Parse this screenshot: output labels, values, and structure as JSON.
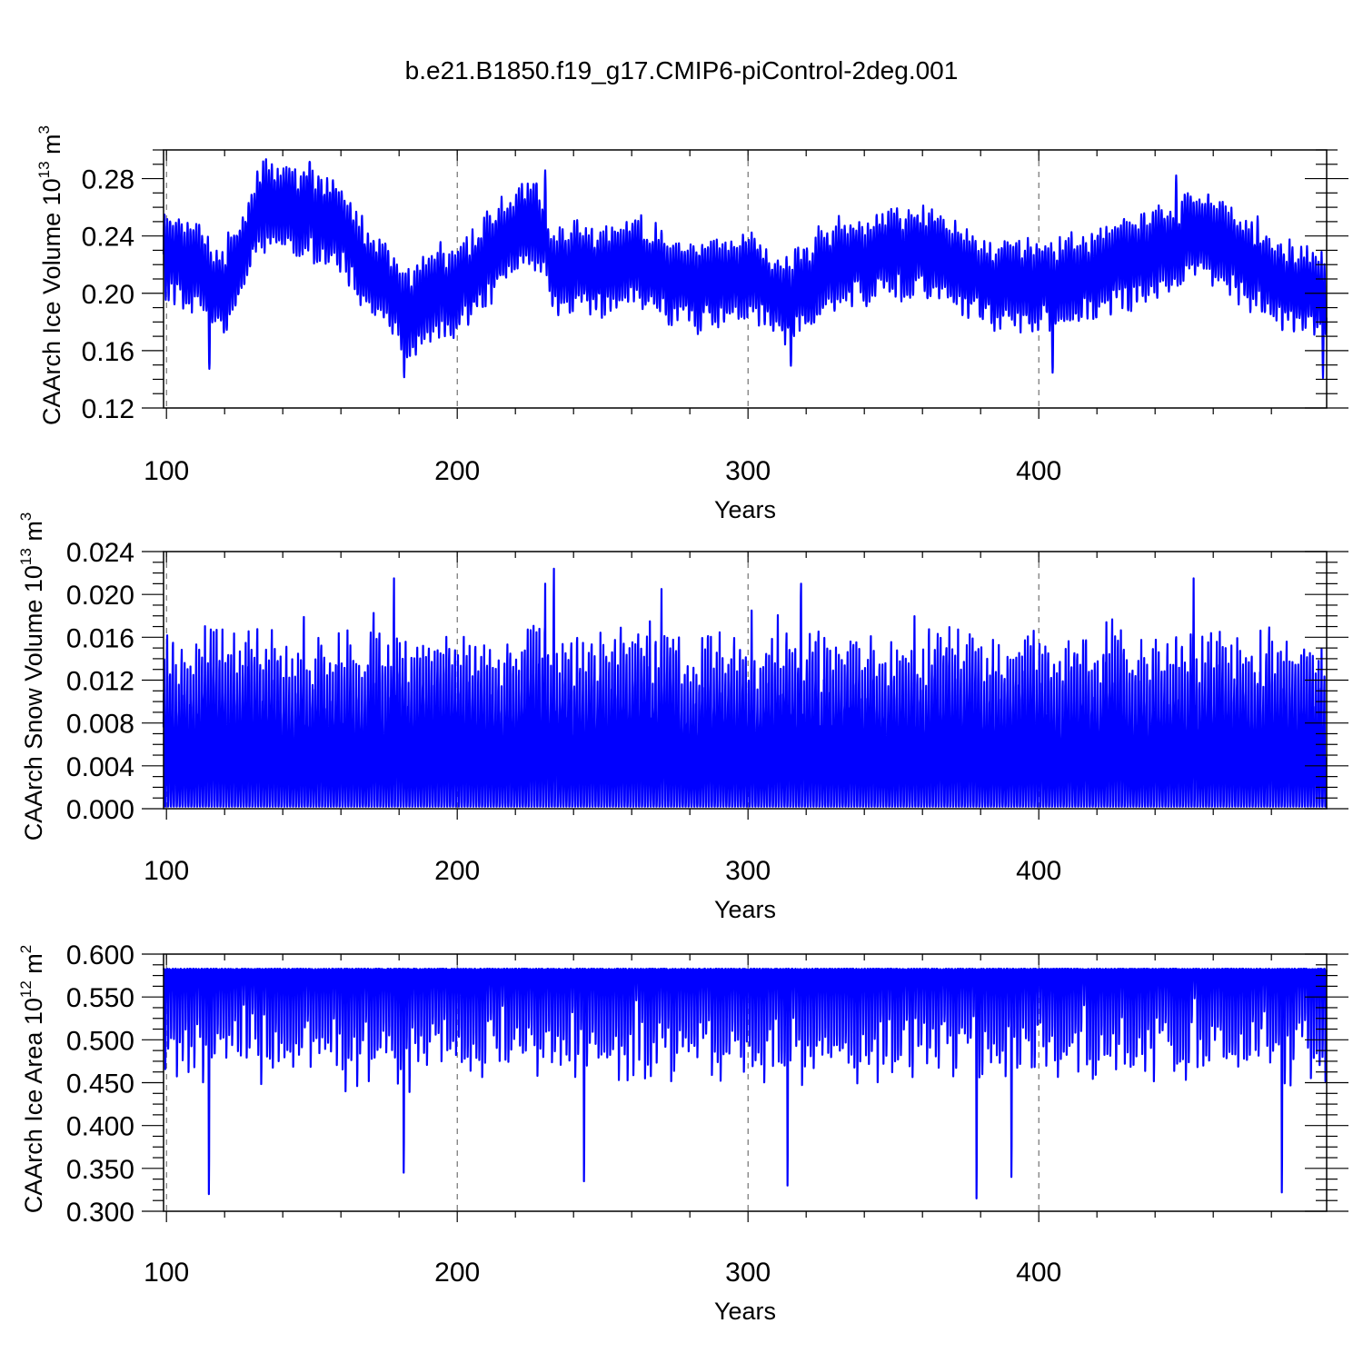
{
  "figure": {
    "title": "b.e21.B1850.f19_g17.CMIP6-piControl-2deg.001"
  },
  "style": {
    "line_color": "#0000ff",
    "grid_color": "#555555",
    "axis_color": "#000000"
  },
  "chart_data": [
    {
      "type": "line",
      "series": [
        {
          "values_note": "",
          "baseline": 0.225
        }
      ],
      "xlabel": "Years",
      "ylabel_main": "CAArch Ice Volume 10",
      "ylabel_exp": "13",
      "ylabel_unit": " m",
      "ylabel_unit_exp": "3",
      "xlim": [
        99,
        499
      ],
      "ylim": [
        0.12,
        0.3
      ],
      "xticks": [
        "100",
        "200",
        "300",
        "400"
      ],
      "xtick_values": [
        100,
        200,
        300,
        400
      ],
      "yticks": [
        "0.12",
        "0.16",
        "0.20",
        "0.24",
        "0.28"
      ],
      "ytick_values": [
        0.12,
        0.16,
        0.2,
        0.24,
        0.28
      ],
      "x_grid": "dashed-at-major-ticks",
      "pattern": "seasonal",
      "trend_points": [
        [
          99,
          0.225
        ],
        [
          110,
          0.222
        ],
        [
          118,
          0.2
        ],
        [
          125,
          0.225
        ],
        [
          132,
          0.262
        ],
        [
          145,
          0.258
        ],
        [
          158,
          0.25
        ],
        [
          170,
          0.215
        ],
        [
          182,
          0.19
        ],
        [
          195,
          0.2
        ],
        [
          205,
          0.215
        ],
        [
          215,
          0.235
        ],
        [
          225,
          0.255
        ],
        [
          232,
          0.22
        ],
        [
          245,
          0.215
        ],
        [
          260,
          0.225
        ],
        [
          280,
          0.205
        ],
        [
          300,
          0.215
        ],
        [
          313,
          0.195
        ],
        [
          325,
          0.215
        ],
        [
          345,
          0.23
        ],
        [
          365,
          0.228
        ],
        [
          380,
          0.21
        ],
        [
          400,
          0.205
        ],
        [
          420,
          0.215
        ],
        [
          440,
          0.23
        ],
        [
          455,
          0.24
        ],
        [
          470,
          0.225
        ],
        [
          485,
          0.205
        ],
        [
          499,
          0.2
        ]
      ],
      "amplitude": 0.028,
      "extremes": [
        [
          114,
          0.145
        ],
        [
          181,
          0.142
        ],
        [
          230,
          0.285
        ],
        [
          149,
          0.294
        ],
        [
          314,
          0.148
        ],
        [
          404,
          0.143
        ],
        [
          447,
          0.281
        ],
        [
          497,
          0.142
        ]
      ]
    },
    {
      "type": "line",
      "xlabel": "Years",
      "ylabel_main": "CAArch Snow Volume 10",
      "ylabel_exp": "13",
      "ylabel_unit": " m",
      "ylabel_unit_exp": "3",
      "xlim": [
        99,
        499
      ],
      "ylim": [
        0.0,
        0.024
      ],
      "xticks": [
        "100",
        "200",
        "300",
        "400"
      ],
      "xtick_values": [
        100,
        200,
        300,
        400
      ],
      "yticks": [
        "0.000",
        "0.004",
        "0.008",
        "0.012",
        "0.016",
        "0.020",
        "0.024"
      ],
      "ytick_values": [
        0.0,
        0.004,
        0.008,
        0.012,
        0.016,
        0.02,
        0.024
      ],
      "x_grid": "dashed-at-major-ticks",
      "pattern": "seasonal-peaks",
      "peak_mean": 0.0145,
      "peak_spread": 0.0032,
      "trough": 0.0002,
      "extremes": [
        [
          178,
          0.0215
        ],
        [
          233,
          0.0224
        ],
        [
          230,
          0.021
        ],
        [
          318,
          0.021
        ],
        [
          453,
          0.0215
        ],
        [
          270,
          0.0205
        ]
      ]
    },
    {
      "type": "line",
      "xlabel": "Years",
      "ylabel_main": "CAArch Ice Area 10",
      "ylabel_exp": "12",
      "ylabel_unit": " m",
      "ylabel_unit_exp": "2",
      "xlim": [
        99,
        499
      ],
      "ylim": [
        0.3,
        0.6
      ],
      "xticks": [
        "100",
        "200",
        "300",
        "400"
      ],
      "xtick_values": [
        100,
        200,
        300,
        400
      ],
      "yticks": [
        "0.300",
        "0.350",
        "0.400",
        "0.450",
        "0.500",
        "0.550",
        "0.600"
      ],
      "ytick_values": [
        0.3,
        0.35,
        0.4,
        0.45,
        0.5,
        0.55,
        0.6
      ],
      "x_grid": "dashed-at-major-ticks",
      "pattern": "seasonal-troughs",
      "ceiling": 0.583,
      "trough_mean": 0.49,
      "trough_spread": 0.055,
      "extremes": [
        [
          114,
          0.32
        ],
        [
          181,
          0.345
        ],
        [
          243,
          0.335
        ],
        [
          313,
          0.33
        ],
        [
          378,
          0.315
        ],
        [
          390,
          0.34
        ],
        [
          483,
          0.322
        ]
      ]
    }
  ]
}
